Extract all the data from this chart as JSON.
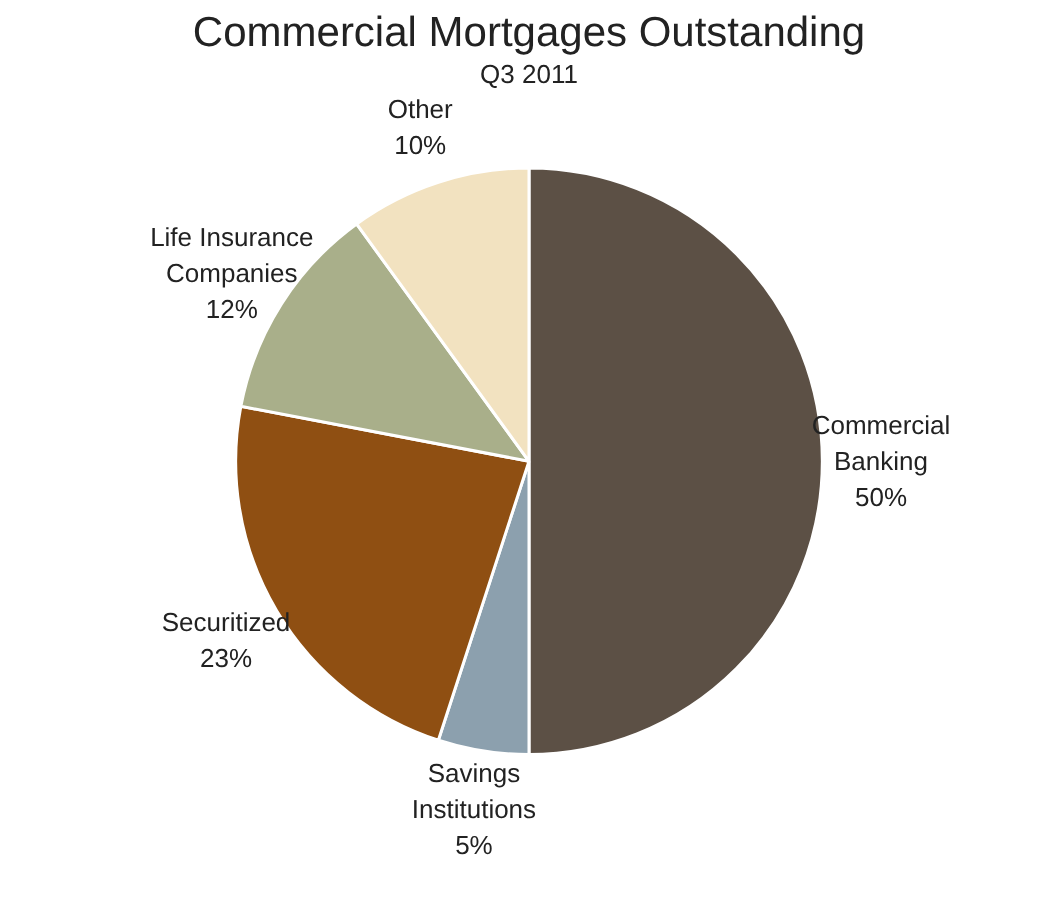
{
  "chart_data": {
    "type": "pie",
    "title": "Commercial Mortgages Outstanding",
    "subtitle": "Q3 2011",
    "categories": [
      "Commercial Banking",
      "Savings Institutions",
      "Securitized",
      "Life Insurance Companies",
      "Other"
    ],
    "values": [
      50,
      5,
      23,
      12,
      10
    ],
    "value_labels": [
      "50%",
      "5%",
      "23%",
      "12%",
      "10%"
    ],
    "colors": [
      "#5c5045",
      "#8ca0ae",
      "#8f4f12",
      "#a9af8a",
      "#f2e2c0"
    ]
  }
}
